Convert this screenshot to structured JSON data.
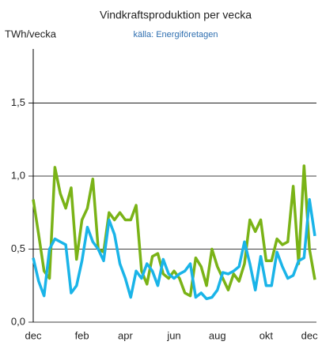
{
  "chart_data": {
    "type": "line",
    "title": "Vindkraftsproduktion per vecka",
    "subtitle": "källa: Energiföretagen",
    "y_label": "TWh/vecka",
    "categories": [
      "dec",
      null,
      null,
      null,
      null,
      null,
      null,
      null,
      null,
      "feb",
      null,
      null,
      null,
      null,
      null,
      null,
      null,
      "apr",
      null,
      null,
      null,
      null,
      null,
      null,
      null,
      null,
      "jun",
      null,
      null,
      null,
      null,
      null,
      null,
      null,
      "aug",
      null,
      null,
      null,
      null,
      null,
      null,
      null,
      null,
      "okt",
      null,
      null,
      null,
      null,
      null,
      null,
      null,
      "dec",
      null
    ],
    "series": [
      {
        "color": "#7ab317",
        "values": [
          0.84,
          0.6,
          0.35,
          0.3,
          1.06,
          0.88,
          0.78,
          0.92,
          0.43,
          0.7,
          0.78,
          0.98,
          0.5,
          0.48,
          0.75,
          0.7,
          0.75,
          0.7,
          0.7,
          0.8,
          0.35,
          0.26,
          0.45,
          0.47,
          0.33,
          0.3,
          0.35,
          0.3,
          0.2,
          0.18,
          0.44,
          0.38,
          0.25,
          0.5,
          0.38,
          0.3,
          0.22,
          0.33,
          0.28,
          0.4,
          0.7,
          0.62,
          0.7,
          0.42,
          0.42,
          0.57,
          0.53,
          0.55,
          0.93,
          0.4,
          1.07,
          0.5,
          0.29
        ]
      },
      {
        "color": "#1ab4e8",
        "values": [
          0.44,
          0.28,
          0.18,
          0.5,
          0.57,
          0.55,
          0.53,
          0.2,
          0.25,
          0.42,
          0.65,
          0.55,
          0.5,
          0.42,
          0.7,
          0.6,
          0.4,
          0.3,
          0.17,
          0.35,
          0.3,
          0.4,
          0.35,
          0.25,
          0.43,
          0.33,
          0.3,
          0.33,
          0.35,
          0.4,
          0.17,
          0.2,
          0.16,
          0.17,
          0.22,
          0.34,
          0.33,
          0.35,
          0.38,
          0.55,
          0.4,
          0.22,
          0.45,
          0.25,
          0.25,
          0.48,
          0.38,
          0.3,
          0.32,
          0.42,
          0.44,
          0.84,
          0.59
        ]
      }
    ],
    "ylim": [
      0,
      1.87
    ],
    "yticks": [
      {
        "value": 0,
        "label": "0,0"
      },
      {
        "value": 0.5,
        "label": "0,5"
      },
      {
        "value": 1.0,
        "label": "1,0"
      },
      {
        "value": 1.5,
        "label": "1,5"
      }
    ],
    "grid": true
  }
}
